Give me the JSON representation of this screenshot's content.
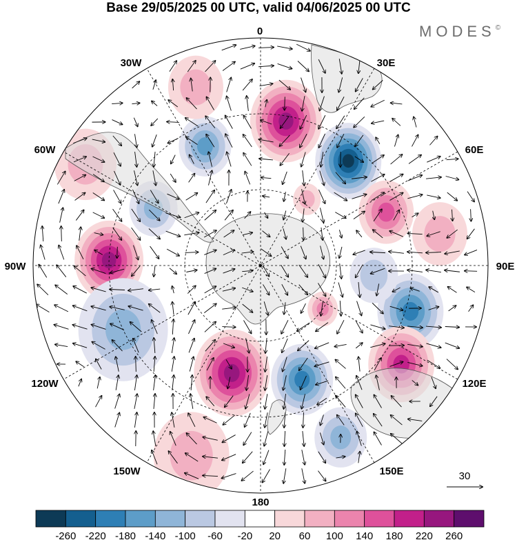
{
  "title": "Base 29/05/2025 00 UTC, valid 04/06/2025 00 UTC",
  "brand": "MODES",
  "brand_mark": "©",
  "longitude_labels": {
    "top": "0",
    "top_right": "30E",
    "right_upper": "60E",
    "right": "90E",
    "right_lower": "120E",
    "bottom_right": "150E",
    "bottom": "180",
    "bottom_left": "150W",
    "left_lower": "120W",
    "left": "90W",
    "left_upper": "60W",
    "top_left": "30W"
  },
  "vector_reference": "30",
  "colorbar": {
    "colors": [
      "#0d3a56",
      "#145f8f",
      "#2e7fb5",
      "#5d9dc8",
      "#8fb5d8",
      "#bac8e2",
      "#e2e3f0",
      "#ffffff",
      "#f8d8da",
      "#f2b0c2",
      "#eb84ad",
      "#de519b",
      "#c2208a",
      "#97177e",
      "#5e0e6d"
    ],
    "tick_labels": [
      "-260",
      "-220",
      "-180",
      "-140",
      "-100",
      "-60",
      "-20",
      "20",
      "60",
      "100",
      "140",
      "180",
      "220",
      "260"
    ]
  },
  "anomaly_centers": [
    {
      "lon": 10,
      "lat": -32,
      "value": 220,
      "r": 52
    },
    {
      "lon": 40,
      "lat": -36,
      "value": -260,
      "r": 48
    },
    {
      "lon": -25,
      "lat": -38,
      "value": -140,
      "r": 38
    },
    {
      "lon": 67,
      "lat": -36,
      "value": 160,
      "r": 40
    },
    {
      "lon": 80,
      "lat": -18,
      "value": 60,
      "r": 40
    },
    {
      "lon": -62,
      "lat": -42,
      "value": -120,
      "r": 35
    },
    {
      "lon": -88,
      "lat": -30,
      "value": 240,
      "r": 50
    },
    {
      "lon": -115,
      "lat": -30,
      "value": -120,
      "r": 65
    },
    {
      "lon": -165,
      "lat": -46,
      "value": 240,
      "r": 55
    },
    {
      "lon": 160,
      "lat": -42,
      "value": -200,
      "r": 45
    },
    {
      "lon": 125,
      "lat": -60,
      "value": 120,
      "r": 22
    },
    {
      "lon": 107,
      "lat": -28,
      "value": -180,
      "r": 48
    },
    {
      "lon": 125,
      "lat": -22,
      "value": 180,
      "r": 48
    },
    {
      "lon": 155,
      "lat": -15,
      "value": -100,
      "r": 38
    },
    {
      "lon": -160,
      "lat": -10,
      "value": 60,
      "r": 55
    },
    {
      "lon": -60,
      "lat": -10,
      "value": 80,
      "r": 45
    },
    {
      "lon": -20,
      "lat": -15,
      "value": 60,
      "r": 40
    },
    {
      "lon": 95,
      "lat": -45,
      "value": -60,
      "r": 35
    },
    {
      "lon": 35,
      "lat": -58,
      "value": 80,
      "r": 20
    }
  ]
}
